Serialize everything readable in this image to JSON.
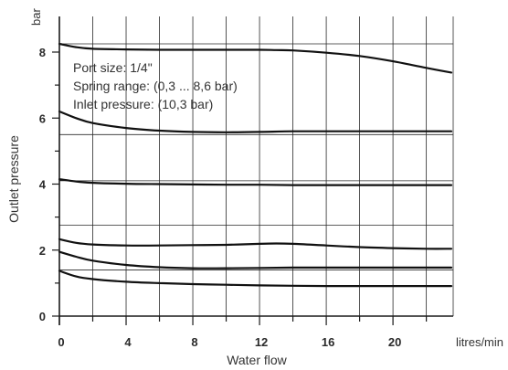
{
  "chart_data": {
    "type": "line",
    "title": "",
    "xlabel": "Water flow",
    "ylabel": "Outlet pressure",
    "x_unit": "litres/min",
    "y_unit": "bar",
    "xlim": [
      0,
      24
    ],
    "ylim": [
      0,
      9
    ],
    "x_ticks": [
      0,
      4,
      8,
      12,
      16,
      20
    ],
    "y_ticks": [
      0,
      2,
      4,
      6,
      8
    ],
    "y_minor_ticks": [
      1,
      3,
      5,
      7
    ],
    "grid": true,
    "annotations": [
      "Port size: 1/4\"",
      "Spring range: (0,3 ... 8,6 bar)",
      "Inlet pressure: (10,3 bar)"
    ],
    "series": [
      {
        "x": [
          0,
          1,
          2,
          4,
          6,
          8,
          10,
          12,
          13,
          14,
          16,
          18,
          20,
          22,
          23.5
        ],
        "y": [
          8.25,
          8.15,
          8.1,
          8.08,
          8.07,
          8.07,
          8.07,
          8.07,
          8.06,
          8.05,
          7.98,
          7.88,
          7.72,
          7.52,
          7.38
        ]
      },
      {
        "x": [
          0,
          1,
          2,
          4,
          6,
          8,
          10,
          12,
          14,
          16,
          18,
          20,
          22,
          23.5
        ],
        "y": [
          6.2,
          6.0,
          5.85,
          5.7,
          5.62,
          5.58,
          5.57,
          5.58,
          5.6,
          5.6,
          5.6,
          5.6,
          5.6,
          5.6
        ]
      },
      {
        "x": [
          0,
          1,
          2,
          4,
          6,
          8,
          10,
          12,
          14,
          16,
          18,
          20,
          22,
          23.5
        ],
        "y": [
          4.15,
          4.08,
          4.04,
          4.01,
          4.0,
          3.99,
          3.98,
          3.98,
          3.97,
          3.97,
          3.97,
          3.97,
          3.97,
          3.97
        ]
      },
      {
        "x": [
          0,
          1,
          2,
          4,
          6,
          8,
          10,
          12,
          13,
          14,
          16,
          18,
          20,
          22,
          23.5
        ],
        "y": [
          2.33,
          2.22,
          2.17,
          2.14,
          2.14,
          2.15,
          2.16,
          2.19,
          2.2,
          2.19,
          2.14,
          2.09,
          2.06,
          2.04,
          2.04
        ]
      },
      {
        "x": [
          0,
          1,
          2,
          4,
          6,
          8,
          10,
          12,
          14,
          16,
          18,
          20,
          22,
          23.5
        ],
        "y": [
          1.95,
          1.8,
          1.68,
          1.55,
          1.48,
          1.45,
          1.45,
          1.46,
          1.47,
          1.47,
          1.47,
          1.47,
          1.47,
          1.47
        ]
      },
      {
        "x": [
          0,
          1,
          2,
          4,
          6,
          8,
          10,
          12,
          14,
          16,
          18,
          20,
          22,
          23.5
        ],
        "y": [
          1.37,
          1.2,
          1.12,
          1.04,
          1.0,
          0.97,
          0.95,
          0.93,
          0.92,
          0.91,
          0.91,
          0.91,
          0.91,
          0.91
        ]
      }
    ]
  }
}
